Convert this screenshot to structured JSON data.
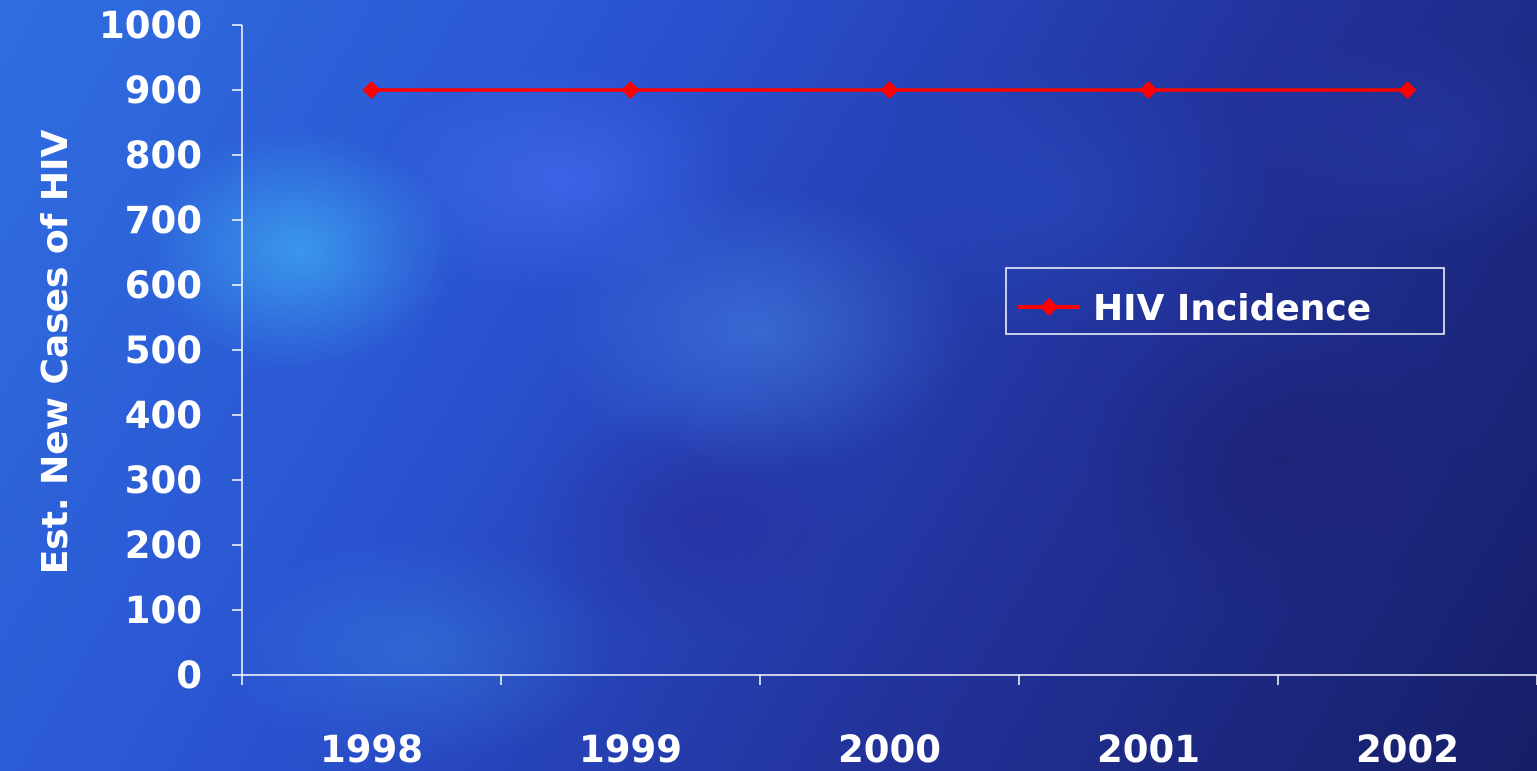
{
  "chart_data": {
    "type": "line",
    "title": "",
    "xlabel": "",
    "ylabel": "Est. New Cases of HIV",
    "categories": [
      "1998",
      "1999",
      "2000",
      "2001",
      "2002"
    ],
    "series": [
      {
        "name": "HIV Incidence",
        "values": [
          900,
          900,
          900,
          900,
          900
        ],
        "color": "#ff0000",
        "marker": "diamond"
      }
    ],
    "ylim": [
      0,
      1000
    ],
    "yticks": [
      0,
      100,
      200,
      300,
      400,
      500,
      600,
      700,
      800,
      900,
      1000
    ],
    "grid": false,
    "legend_position": "right",
    "colors": {
      "axis": "#ffffff",
      "text": "#ffffff"
    }
  }
}
